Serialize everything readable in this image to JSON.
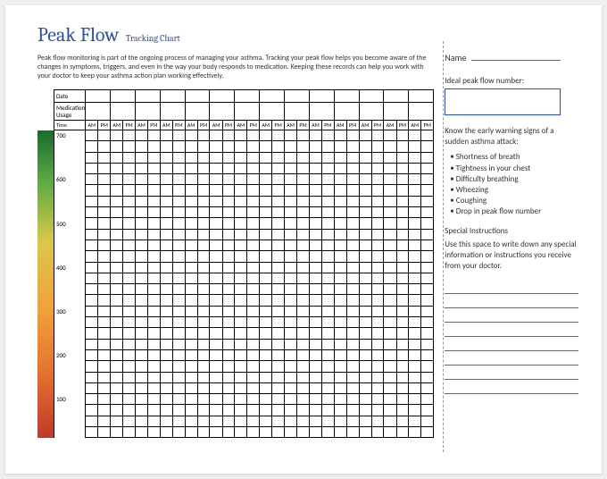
{
  "header": {
    "title": "Peak Flow",
    "subtitle": "Tracking Chart",
    "intro": "Peak flow monitoring is part of the ongoing process of managing your asthma. Tracking your peak flow helps you become aware of the changes in symptoms, triggers, and even in the way your body responds to medication. Keeping these records can help you work with your doctor to keep your asthma action plan working effectively."
  },
  "table": {
    "date_label": "Date",
    "medication_label": "Medication Usage",
    "time_label": "Time",
    "am": "AM",
    "pm": "PM",
    "day_count": 14,
    "y_ticks": [
      "700",
      "",
      "",
      "",
      "600",
      "",
      "",
      "",
      "500",
      "",
      "",
      "",
      "400",
      "",
      "",
      "",
      "300",
      "",
      "",
      "",
      "200",
      "",
      "",
      "",
      "100",
      "",
      "",
      ""
    ],
    "gradient_stops": [
      "#1a6b2e",
      "#5aa843",
      "#d9c84a",
      "#f0a23a",
      "#e6742e",
      "#c0392b"
    ]
  },
  "sidebar": {
    "name_label": "Name",
    "ideal_label": "Ideal peak flow number:",
    "warning_heading": "Know the early warning signs of a sudden asthma attack:",
    "warning_items": [
      "Shortness of breath",
      "Tightness in your chest",
      "Difficulty breathing",
      "Wheezing",
      "Coughing",
      "Drop in peak flow number"
    ],
    "special_heading": "Special Instructions",
    "special_text": "Use this space to write down any special information or instructions you receive from your doctor.",
    "write_line_count": 8
  }
}
